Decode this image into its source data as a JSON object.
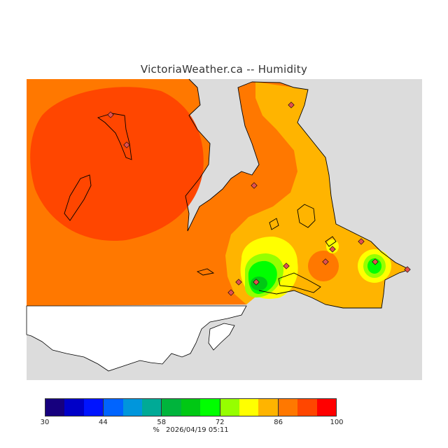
{
  "title": "VictoriaWeather.ca -- Humidity",
  "legend": {
    "colors": [
      "#16007e",
      "#0000c8",
      "#0014ff",
      "#0064ff",
      "#0096dc",
      "#00aa96",
      "#00b43c",
      "#00c814",
      "#00ff00",
      "#96ff00",
      "#ffff00",
      "#ffb400",
      "#ff7800",
      "#ff4600",
      "#ff0000"
    ],
    "tick_values": [
      "30",
      "44",
      "58",
      "72",
      "86",
      "100"
    ],
    "unit": "%",
    "timestamp": "2026/04/19 05:11"
  },
  "colors": {
    "no_data": "#dcdcdc",
    "land_outside": "#ffffff",
    "humidity_96": "#ff4600",
    "humidity_91": "#ff7800",
    "humidity_86": "#ffb400",
    "humidity_81": "#ffff00",
    "humidity_77": "#96ff00",
    "humidity_72": "#00ff00",
    "humidity_67": "#00c814",
    "station_marker": "#e05050"
  }
}
